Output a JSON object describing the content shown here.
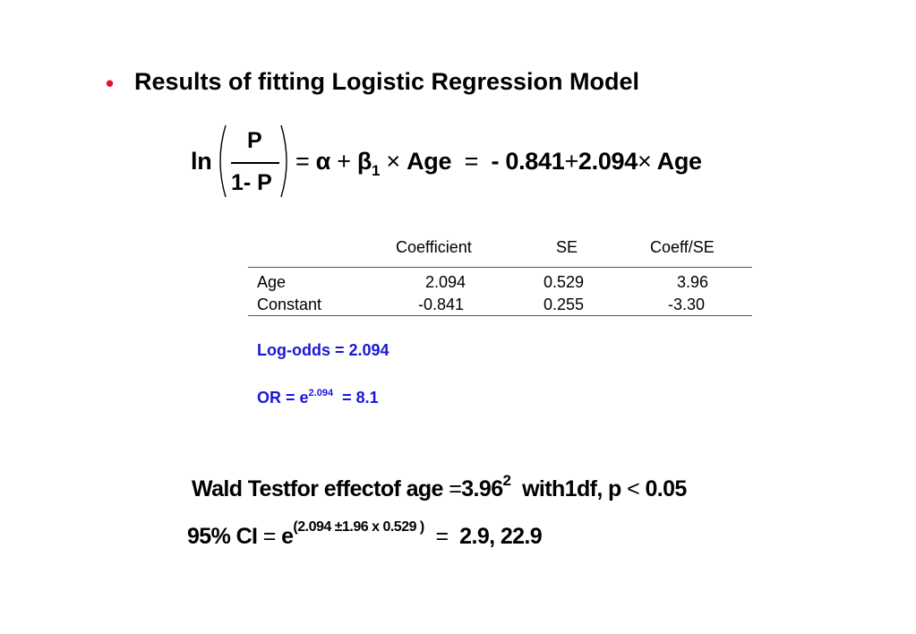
{
  "slide": {
    "bullet": "•",
    "title": "Results of fitting Logistic Regression Model"
  },
  "equation": {
    "ln": "ln",
    "numerator": "P",
    "denominator": "1- P",
    "equals": "=",
    "alpha": "α",
    "plus": "+",
    "beta": "β",
    "beta_sub": "1",
    "times": "×",
    "age": "Age",
    "equals2": "=",
    "intercept": "- 0.841",
    "plus2": "+",
    "slope": "2.094",
    "times2": "×",
    "age2": "Age"
  },
  "table": {
    "headers": [
      "",
      "Coefficient",
      "SE",
      "Coeff/SE"
    ],
    "rows": [
      {
        "label": "Age",
        "coef": "2.094",
        "se": "0.529",
        "ratio": "3.96"
      },
      {
        "label": "Constant",
        "coef": "-0.841",
        "se": "0.255",
        "ratio": "-3.30"
      }
    ]
  },
  "notes": {
    "log_odds": "Log-odds = 2.094",
    "or_prefix": "OR = e",
    "or_exponent": "2.094",
    "or_suffix": "=  8.1"
  },
  "wald": {
    "text": "Wald Testfor effectof age",
    "equals": "=",
    "value": "3.96",
    "power": "2",
    "tail": "with1df,  p",
    "lt": "<",
    "pval": "0.05"
  },
  "ci": {
    "label": "95% CI",
    "equals": "=",
    "e": "e",
    "exponent": "(2.094 ±1.96  x 0.529 )",
    "equals2": "=",
    "value": "2.9, 22.9"
  },
  "colors": {
    "bullet": "#e8112d",
    "notes": "#1a17d6"
  }
}
